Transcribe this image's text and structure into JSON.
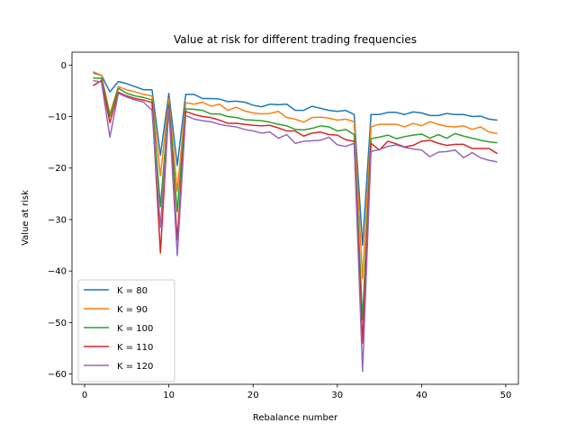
{
  "chart_data": {
    "type": "line",
    "title": "Value at risk for different trading frequencies",
    "xlabel": "Rebalance number",
    "ylabel": "Value at risk",
    "xlim": [
      -1.5,
      51.5
    ],
    "ylim": [
      -62,
      2.5
    ],
    "xticks": [
      0,
      10,
      20,
      30,
      40,
      50
    ],
    "yticks": [
      0,
      -10,
      -20,
      -30,
      -40,
      -50,
      -60
    ],
    "grid": false,
    "legend_position": "lower-left",
    "x": [
      1,
      2,
      3,
      4,
      5,
      6,
      7,
      8,
      9,
      10,
      11,
      12,
      13,
      14,
      15,
      16,
      17,
      18,
      19,
      20,
      21,
      22,
      23,
      24,
      25,
      26,
      27,
      28,
      29,
      30,
      31,
      32,
      33,
      34,
      35,
      36,
      37,
      38,
      39,
      40,
      41,
      42,
      43,
      44,
      45,
      46,
      47,
      48,
      49
    ],
    "series": [
      {
        "name": "K = 80",
        "color": "#1f77b4",
        "values": [
          -1.5,
          -2.0,
          -5.2,
          -3.2,
          -3.6,
          -4.2,
          -4.8,
          -4.8,
          -17.5,
          -5.5,
          -19.5,
          -5.7,
          -5.7,
          -6.5,
          -6.5,
          -6.6,
          -7.1,
          -7.0,
          -7.2,
          -7.8,
          -8.1,
          -7.6,
          -7.7,
          -7.6,
          -8.8,
          -8.8,
          -8.0,
          -8.4,
          -8.8,
          -9.0,
          -8.8,
          -9.6,
          -35.0,
          -9.6,
          -9.6,
          -9.2,
          -9.2,
          -9.6,
          -9.1,
          -9.3,
          -9.8,
          -9.8,
          -9.4,
          -9.6,
          -9.6,
          -10.0,
          -9.9,
          -10.5,
          -10.7
        ]
      },
      {
        "name": "K = 90",
        "color": "#ff7f0e",
        "values": [
          -1.3,
          -2.0,
          -9.5,
          -4.2,
          -4.8,
          -5.2,
          -5.7,
          -6.0,
          -21.5,
          -6.5,
          -24.5,
          -7.3,
          -7.6,
          -7.2,
          -8.0,
          -7.6,
          -8.8,
          -8.2,
          -8.9,
          -9.3,
          -9.5,
          -9.4,
          -9.0,
          -10.2,
          -10.5,
          -11.1,
          -10.2,
          -10.1,
          -10.3,
          -10.7,
          -10.5,
          -11.0,
          -41.5,
          -12.0,
          -11.5,
          -11.5,
          -11.5,
          -12.0,
          -11.3,
          -11.8,
          -11.0,
          -11.5,
          -11.9,
          -12.0,
          -11.8,
          -12.5,
          -12.0,
          -13.0,
          -13.3
        ]
      },
      {
        "name": "K = 100",
        "color": "#2ca02c",
        "values": [
          -2.5,
          -2.6,
          -10.0,
          -4.5,
          -5.5,
          -6.0,
          -6.3,
          -6.8,
          -27.5,
          -7.5,
          -28.5,
          -8.5,
          -8.6,
          -8.8,
          -9.5,
          -9.5,
          -10.0,
          -10.2,
          -10.6,
          -10.7,
          -10.8,
          -11.1,
          -11.5,
          -11.8,
          -12.5,
          -12.6,
          -12.3,
          -11.8,
          -12.0,
          -12.8,
          -12.5,
          -13.5,
          -49.5,
          -14.3,
          -14.0,
          -13.6,
          -14.3,
          -13.9,
          -13.6,
          -13.4,
          -14.2,
          -13.5,
          -14.2,
          -13.3,
          -13.8,
          -14.2,
          -14.6,
          -14.9,
          -15.1
        ]
      },
      {
        "name": "K = 110",
        "color": "#d62728",
        "values": [
          -4.0,
          -3.0,
          -11.2,
          -5.3,
          -6.0,
          -6.5,
          -6.8,
          -7.3,
          -36.5,
          -8.0,
          -34.0,
          -9.0,
          -9.6,
          -10.0,
          -10.2,
          -10.7,
          -11.3,
          -11.3,
          -11.5,
          -11.7,
          -11.8,
          -11.7,
          -12.2,
          -12.8,
          -12.8,
          -13.8,
          -13.2,
          -13.0,
          -13.5,
          -13.6,
          -14.5,
          -14.8,
          -54.0,
          -15.2,
          -16.5,
          -14.8,
          -15.3,
          -15.9,
          -15.6,
          -14.8,
          -14.6,
          -15.2,
          -15.6,
          -15.4,
          -15.4,
          -16.2,
          -16.2,
          -16.2,
          -17.2
        ]
      },
      {
        "name": "K = 120",
        "color": "#9467bd",
        "values": [
          -3.0,
          -3.3,
          -14.0,
          -5.5,
          -6.2,
          -6.8,
          -7.2,
          -8.8,
          -31.5,
          -8.5,
          -37.0,
          -9.8,
          -10.5,
          -10.8,
          -11.0,
          -11.5,
          -11.8,
          -12.0,
          -12.5,
          -12.8,
          -13.2,
          -13.0,
          -14.2,
          -13.5,
          -15.2,
          -14.8,
          -14.7,
          -14.6,
          -14.0,
          -15.5,
          -15.8,
          -15.2,
          -59.5,
          -16.8,
          -16.4,
          -15.8,
          -15.5,
          -16.0,
          -16.3,
          -16.5,
          -17.8,
          -16.9,
          -16.8,
          -16.5,
          -18.0,
          -17.0,
          -18.0,
          -18.5,
          -18.8
        ]
      }
    ]
  }
}
